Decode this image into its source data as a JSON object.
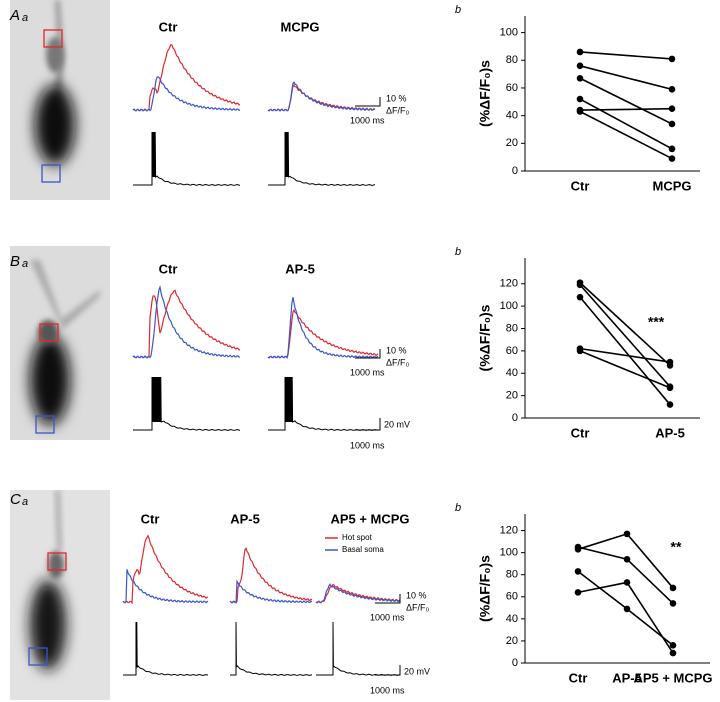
{
  "panels": [
    {
      "letter": "A",
      "sub": "a",
      "chart_sub": "b",
      "conditions": [
        "Ctr",
        "MCPG"
      ],
      "scale_pct": "10 %",
      "scale_unit": "ΔF/F₀",
      "scale_time": "1000 ms"
    },
    {
      "letter": "B",
      "sub": "a",
      "chart_sub": "b",
      "conditions": [
        "Ctr",
        "AP-5"
      ],
      "scale_pct": "10 %",
      "scale_unit": "ΔF/F₀",
      "scale_time": "1000 ms",
      "scale_mv": "20 mV",
      "scale_time2": "1000 ms"
    },
    {
      "letter": "C",
      "sub": "a",
      "chart_sub": "b",
      "conditions": [
        "Ctr",
        "AP-5",
        "AP5 + MCPG"
      ],
      "legend": [
        {
          "name": "Hot spot",
          "color": "#e0282e"
        },
        {
          "name": "Basal soma",
          "color": "#3a56c8"
        }
      ],
      "scale_pct": "10 %",
      "scale_unit": "ΔF/F₀",
      "scale_time": "1000 ms",
      "scale_mv": "20 mV",
      "scale_time2": "1000 ms"
    }
  ],
  "chart_data": [
    {
      "type": "paired",
      "y_label": "(%ΔF/F₀)s",
      "categories": [
        "Ctr",
        "MCPG"
      ],
      "color": "#000000",
      "series": [
        {
          "values": [
            86,
            81
          ]
        },
        {
          "values": [
            76,
            59
          ]
        },
        {
          "values": [
            67,
            34
          ]
        },
        {
          "values": [
            52,
            16
          ]
        },
        {
          "values": [
            44,
            45
          ]
        },
        {
          "values": [
            43,
            9
          ]
        }
      ],
      "ylim": [
        0,
        112
      ],
      "yticks": [
        0,
        20,
        40,
        60,
        80,
        100
      ]
    },
    {
      "type": "paired",
      "y_label": "(%ΔF/F₀)s",
      "categories": [
        "Ctr",
        "AP-5"
      ],
      "color": "#000000",
      "annotation": "***",
      "series": [
        {
          "values": [
            121,
            47
          ]
        },
        {
          "values": [
            119,
            28
          ]
        },
        {
          "values": [
            108,
            12
          ]
        },
        {
          "values": [
            62,
            50
          ]
        },
        {
          "values": [
            60,
            27
          ]
        }
      ],
      "ylim": [
        0,
        143
      ],
      "yticks": [
        0,
        20,
        40,
        60,
        80,
        100,
        120
      ]
    },
    {
      "type": "paired",
      "y_label": "(%ΔF/F₀)s",
      "categories": [
        "Ctr",
        "AP-5",
        "AP5 + MCPG"
      ],
      "color": "#000000",
      "annotation": "**",
      "series": [
        {
          "values": [
            105,
            94,
            54
          ]
        },
        {
          "values": [
            103,
            117,
            68
          ]
        },
        {
          "values": [
            83,
            49,
            16
          ]
        },
        {
          "values": [
            64,
            73,
            9
          ]
        }
      ],
      "ylim": [
        0,
        135
      ],
      "yticks": [
        0,
        20,
        40,
        60,
        80,
        100,
        120
      ]
    }
  ]
}
